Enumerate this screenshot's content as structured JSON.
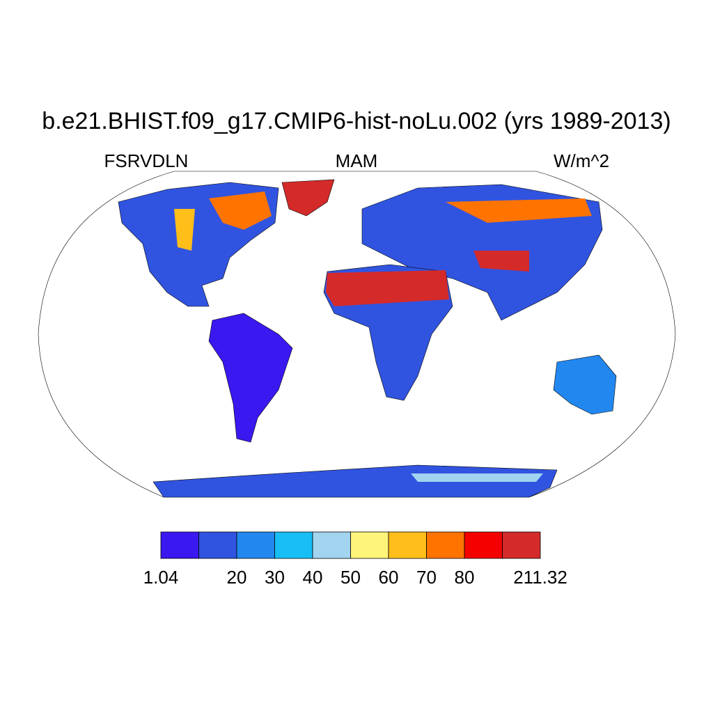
{
  "title": "b.e21.BHIST.f09_g17.CMIP6-hist-noLu.002 (yrs 1989-2013)",
  "left_label": "FSRVDLN",
  "center_label": "MAM",
  "right_label": "W/m^2",
  "colorbar": {
    "boundaries": [
      1.04,
      null,
      20,
      30,
      40,
      50,
      60,
      70,
      80,
      null,
      211.32
    ],
    "colors": [
      "#3a18f0",
      "#3054e0",
      "#2288f0",
      "#18bef5",
      "#a2d4f0",
      "#fff47a",
      "#ffbe1a",
      "#ff7300",
      "#f50000",
      "#d42a2a"
    ]
  }
}
